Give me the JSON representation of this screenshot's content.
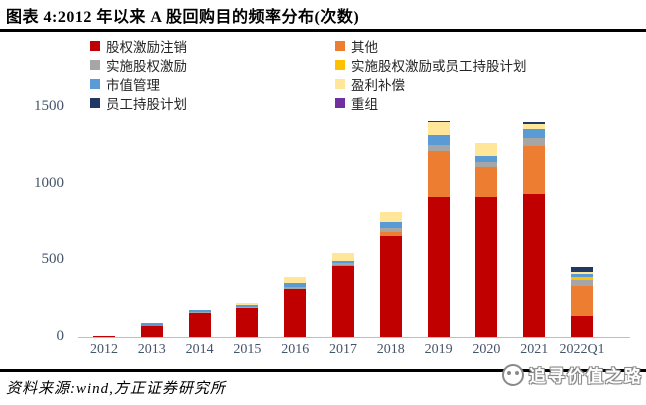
{
  "header": {
    "title": "图表 4:2012 年以来 A 股回购目的频率分布(次数)"
  },
  "footer": {
    "source": "资料来源:wind,方正证券研究所",
    "watermark": "追寻价值之路"
  },
  "chart_data": {
    "type": "bar",
    "stacked": true,
    "grid": false,
    "legend_position": "top",
    "categories": [
      "2012",
      "2013",
      "2014",
      "2015",
      "2016",
      "2017",
      "2018",
      "2019",
      "2020",
      "2021",
      "2022Q1"
    ],
    "series": [
      {
        "name": "股权激励注销",
        "color": "#C00000",
        "values": [
          5,
          70,
          155,
          190,
          310,
          465,
          660,
          910,
          910,
          930,
          140
        ]
      },
      {
        "name": "其他",
        "color": "#ED7D31",
        "values": [
          0,
          0,
          0,
          0,
          5,
          5,
          25,
          300,
          200,
          315,
          195
        ]
      },
      {
        "name": "实施股权激励",
        "color": "#A6A6A6",
        "values": [
          0,
          5,
          8,
          5,
          10,
          15,
          25,
          45,
          30,
          55,
          35
        ]
      },
      {
        "name": "实施股权激励或员工持股计划",
        "color": "#FFC000",
        "values": [
          0,
          0,
          0,
          0,
          0,
          0,
          0,
          0,
          0,
          0,
          20
        ]
      },
      {
        "name": "市值管理",
        "color": "#5B9BD5",
        "values": [
          0,
          15,
          15,
          15,
          25,
          10,
          40,
          65,
          40,
          55,
          20
        ]
      },
      {
        "name": "盈利补偿",
        "color": "#FFE699",
        "values": [
          0,
          0,
          0,
          15,
          40,
          50,
          65,
          85,
          85,
          35,
          15
        ]
      },
      {
        "name": "员工持股计划",
        "color": "#1F3864",
        "values": [
          0,
          0,
          0,
          0,
          0,
          0,
          0,
          5,
          0,
          15,
          30
        ]
      },
      {
        "name": "重组",
        "color": "#7030A0",
        "values": [
          0,
          0,
          0,
          0,
          0,
          0,
          0,
          0,
          0,
          0,
          0
        ]
      }
    ],
    "ylim": [
      0,
      1500
    ],
    "yticks": [
      0,
      500,
      1000,
      1500
    ],
    "xlabel": "",
    "ylabel": "",
    "totals": [
      5,
      90,
      178,
      225,
      390,
      545,
      815,
      1410,
      1265,
      1405,
      455
    ]
  }
}
